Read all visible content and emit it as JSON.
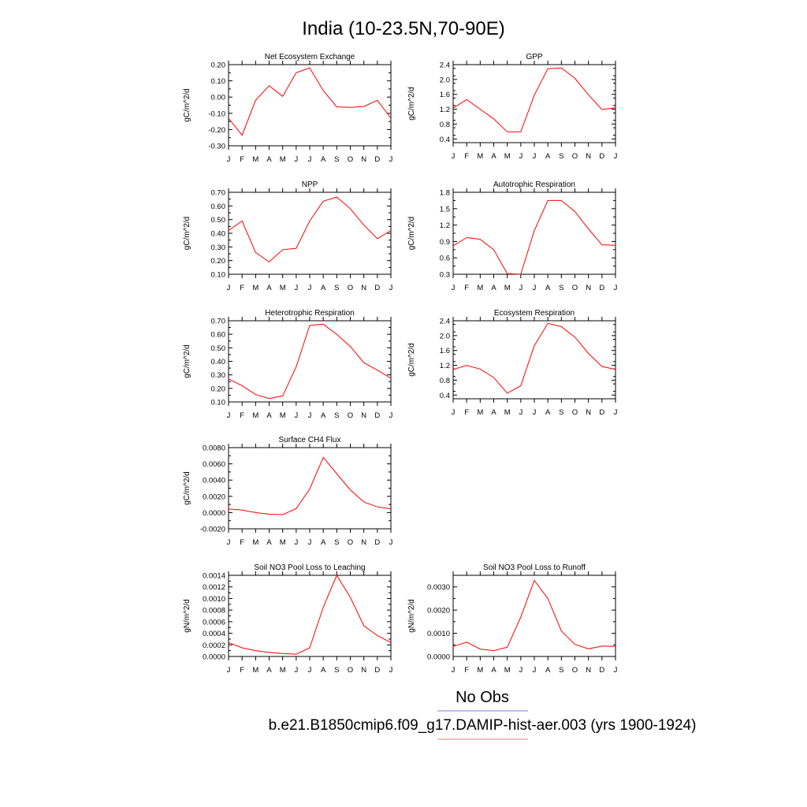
{
  "title": "India (10-23.5N,70-90E)",
  "legend": [
    {
      "label": "No Obs",
      "color": "#7777ee"
    },
    {
      "label": "b.e21.B1850cmip6.f09_g17.DAMIP-hist-aer.003 (yrs 1900-1924)",
      "color": "#ee7777"
    }
  ],
  "series_color": "#ff0000",
  "chart_data": [
    {
      "type": "line",
      "title": "Net Ecosystem Exchange",
      "ylabel": "gC/m^2/d",
      "categories": [
        "J",
        "F",
        "M",
        "A",
        "M",
        "J",
        "J",
        "A",
        "S",
        "O",
        "N",
        "D",
        "J"
      ],
      "ylim": [
        -0.3,
        0.2
      ],
      "yticks": [
        "0.20",
        "0.10",
        "0.00",
        "-0.10",
        "-0.20",
        "-0.30"
      ],
      "series": [
        {
          "values": [
            -0.13,
            -0.235,
            -0.02,
            0.07,
            0.005,
            0.15,
            0.18,
            0.04,
            -0.06,
            -0.063,
            -0.058,
            -0.02,
            -0.13
          ]
        }
      ]
    },
    {
      "type": "line",
      "title": "GPP",
      "ylabel": "gC/m^2/d",
      "categories": [
        "J",
        "F",
        "M",
        "A",
        "M",
        "J",
        "J",
        "A",
        "S",
        "O",
        "N",
        "D",
        "J"
      ],
      "ylim": [
        0.3,
        2.4
      ],
      "yticks": [
        "2.4",
        "2.0",
        "1.6",
        "1.2",
        "0.8",
        "0.4"
      ],
      "series": [
        {
          "values": [
            1.23,
            1.46,
            1.2,
            0.94,
            0.59,
            0.59,
            1.58,
            2.29,
            2.31,
            2.03,
            1.59,
            1.19,
            1.24
          ]
        }
      ]
    },
    {
      "type": "line",
      "title": "NPP",
      "ylabel": "gC/m^2/d",
      "categories": [
        "J",
        "F",
        "M",
        "A",
        "M",
        "J",
        "J",
        "A",
        "S",
        "O",
        "N",
        "D",
        "J"
      ],
      "ylim": [
        0.1,
        0.7
      ],
      "yticks": [
        "0.70",
        "0.60",
        "0.50",
        "0.40",
        "0.30",
        "0.20",
        "0.10"
      ],
      "series": [
        {
          "values": [
            0.42,
            0.49,
            0.26,
            0.19,
            0.28,
            0.29,
            0.49,
            0.635,
            0.665,
            0.58,
            0.46,
            0.36,
            0.42
          ]
        }
      ]
    },
    {
      "type": "line",
      "title": "Autotrophic Respiration",
      "ylabel": "gC/m^2/d",
      "categories": [
        "J",
        "F",
        "M",
        "A",
        "M",
        "J",
        "J",
        "A",
        "S",
        "O",
        "N",
        "D",
        "J"
      ],
      "ylim": [
        0.3,
        1.8
      ],
      "yticks": [
        "1.8",
        "1.5",
        "1.2",
        "0.9",
        "0.6",
        "0.3"
      ],
      "series": [
        {
          "values": [
            0.82,
            0.97,
            0.94,
            0.75,
            0.31,
            0.3,
            1.1,
            1.65,
            1.65,
            1.45,
            1.13,
            0.84,
            0.83
          ]
        }
      ]
    },
    {
      "type": "line",
      "title": "Heterotrophic Respiration",
      "ylabel": "gC/m^2/d",
      "categories": [
        "J",
        "F",
        "M",
        "A",
        "M",
        "J",
        "J",
        "A",
        "S",
        "O",
        "N",
        "D",
        "J"
      ],
      "ylim": [
        0.1,
        0.7
      ],
      "yticks": [
        "0.70",
        "0.60",
        "0.50",
        "0.40",
        "0.30",
        "0.20",
        "0.10"
      ],
      "series": [
        {
          "values": [
            0.27,
            0.22,
            0.155,
            0.125,
            0.145,
            0.36,
            0.665,
            0.675,
            0.6,
            0.51,
            0.39,
            0.335,
            0.275
          ]
        }
      ]
    },
    {
      "type": "line",
      "title": "Ecosystem Respiration",
      "ylabel": "gC/m^2/d",
      "categories": [
        "J",
        "F",
        "M",
        "A",
        "M",
        "J",
        "J",
        "A",
        "S",
        "O",
        "N",
        "D",
        "J"
      ],
      "ylim": [
        0.3,
        2.4
      ],
      "yticks": [
        "2.4",
        "2.0",
        "1.6",
        "1.2",
        "0.8",
        "0.4"
      ],
      "series": [
        {
          "values": [
            1.09,
            1.2,
            1.1,
            0.87,
            0.45,
            0.65,
            1.73,
            2.33,
            2.24,
            1.96,
            1.52,
            1.17,
            1.09
          ]
        }
      ]
    },
    {
      "type": "line",
      "title": "Surface CH4 Flux",
      "ylabel": "gC/m^2/d",
      "categories": [
        "J",
        "F",
        "M",
        "A",
        "M",
        "J",
        "J",
        "A",
        "S",
        "O",
        "N",
        "D",
        "J"
      ],
      "ylim": [
        -0.002,
        0.008
      ],
      "yticks": [
        "0.0080",
        "0.0060",
        "0.0040",
        "0.0020",
        "0.0000",
        "-0.0020"
      ],
      "series": [
        {
          "values": [
            0.00045,
            0.0003,
            0.0,
            -0.0002,
            -0.00025,
            0.0005,
            0.0029,
            0.0068,
            0.0048,
            0.0028,
            0.0013,
            0.0007,
            0.00045
          ]
        }
      ]
    },
    {
      "type": "line",
      "title": "Soil NO3 Pool Loss to Leaching",
      "ylabel": "gN/m^2/d",
      "categories": [
        "J",
        "F",
        "M",
        "A",
        "M",
        "J",
        "J",
        "A",
        "S",
        "O",
        "N",
        "D",
        "J"
      ],
      "ylim": [
        0.0,
        0.0014
      ],
      "yticks": [
        "0.0014",
        "0.0012",
        "0.0010",
        "0.0008",
        "0.0006",
        "0.0004",
        "0.0002",
        "0.0000"
      ],
      "series": [
        {
          "values": [
            0.00024,
            0.00015,
            0.0001,
            7e-05,
            5e-05,
            4e-05,
            0.00015,
            0.00085,
            0.0014,
            0.00102,
            0.00053,
            0.00036,
            0.00024
          ]
        }
      ]
    },
    {
      "type": "line",
      "title": "Soil NO3 Pool Loss to Runoff",
      "ylabel": "gN/m^2/d",
      "categories": [
        "J",
        "F",
        "M",
        "A",
        "M",
        "J",
        "J",
        "A",
        "S",
        "O",
        "N",
        "D",
        "J"
      ],
      "ylim": [
        0.0,
        0.0035
      ],
      "yticks": [
        "0.0030",
        "0.0020",
        "0.0010",
        "0.0000"
      ],
      "series": [
        {
          "values": [
            0.00043,
            0.00062,
            0.00032,
            0.00025,
            0.0004,
            0.0017,
            0.00328,
            0.0025,
            0.0011,
            0.00052,
            0.00033,
            0.00045,
            0.00043
          ]
        }
      ]
    }
  ]
}
